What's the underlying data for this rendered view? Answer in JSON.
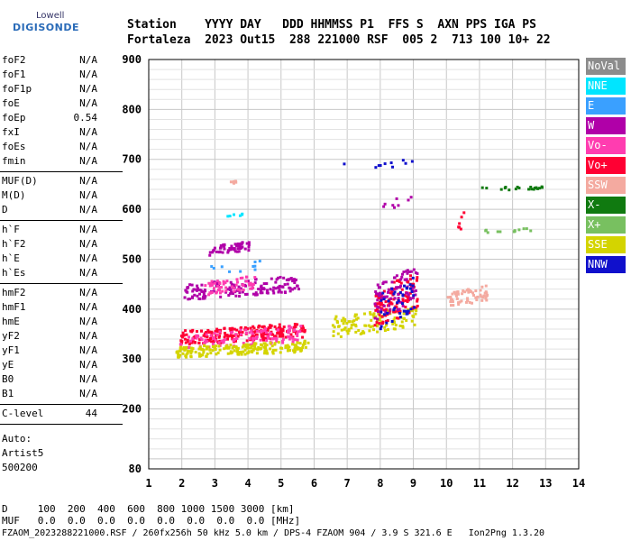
{
  "logo": {
    "line1": "Lowell",
    "line2": "DIGISONDE"
  },
  "header": {
    "line1": "Station    YYYY DAY   DDD HHMMSS P1  FFS S  AXN PPS IGA PS",
    "line2": "Fortaleza  2023 Out15  288 221000 RSF  005 2  713 100 10+ 22"
  },
  "params": {
    "group1": [
      {
        "name": "foF2",
        "value": "N/A"
      },
      {
        "name": "foF1",
        "value": "N/A"
      },
      {
        "name": "foF1p",
        "value": "N/A"
      },
      {
        "name": "foE",
        "value": "N/A"
      },
      {
        "name": "foEp",
        "value": "0.54"
      },
      {
        "name": "fxI",
        "value": "N/A"
      },
      {
        "name": "foEs",
        "value": "N/A"
      },
      {
        "name": "fmin",
        "value": "N/A"
      }
    ],
    "group2": [
      {
        "name": "MUF(D)",
        "value": "N/A"
      },
      {
        "name": "M(D)",
        "value": "N/A"
      },
      {
        "name": "D",
        "value": "N/A"
      }
    ],
    "group3": [
      {
        "name": "h`F",
        "value": "N/A"
      },
      {
        "name": "h`F2",
        "value": "N/A"
      },
      {
        "name": "h`E",
        "value": "N/A"
      },
      {
        "name": "h`Es",
        "value": "N/A"
      }
    ],
    "group4": [
      {
        "name": "hmF2",
        "value": "N/A"
      },
      {
        "name": "hmF1",
        "value": "N/A"
      },
      {
        "name": "hmE",
        "value": "N/A"
      },
      {
        "name": "yF2",
        "value": "N/A"
      },
      {
        "name": "yF1",
        "value": "N/A"
      },
      {
        "name": "yE",
        "value": "N/A"
      },
      {
        "name": "B0",
        "value": "N/A"
      },
      {
        "name": "B1",
        "value": "N/A"
      }
    ],
    "clevel": {
      "name": "C-level",
      "value": "44"
    },
    "auto": [
      "Auto:",
      "Artist5",
      "500200"
    ]
  },
  "legend": [
    {
      "label": "NoVal",
      "color": "#8c8c8c"
    },
    {
      "label": "NNE",
      "color": "#00e5ff"
    },
    {
      "label": "E",
      "color": "#3aa0ff"
    },
    {
      "label": "W",
      "color": "#b000a8"
    },
    {
      "label": "Vo-",
      "color": "#ff3db0"
    },
    {
      "label": "Vo+",
      "color": "#ff0033"
    },
    {
      "label": "SSW",
      "color": "#f4aaa0"
    },
    {
      "label": "X-",
      "color": "#107a10"
    },
    {
      "label": "X+",
      "color": "#78c060"
    },
    {
      "label": "SSE",
      "color": "#d4d400"
    },
    {
      "label": "NNW",
      "color": "#1010cc"
    }
  ],
  "footer": {
    "line1": "D     100  200  400  600  800 1000 1500 3000 [km]",
    "line2": "MUF   0.0  0.0  0.0  0.0  0.0  0.0  0.0  0.0 [MHz]",
    "line3": "FZAOM_2023288221000.RSF / 260fx256h 50 kHz 5.0 km / DPS-4 FZAOM 904 / 3.9 S 321.6 E   Ion2Png 1.3.20"
  },
  "chart_data": {
    "type": "scatter",
    "xlim": [
      1,
      14
    ],
    "ylim": [
      80,
      900
    ],
    "xticks": [
      1,
      2,
      3,
      4,
      5,
      6,
      7,
      8,
      9,
      10,
      11,
      12,
      13,
      14
    ],
    "yticks": [
      80,
      200,
      300,
      400,
      500,
      600,
      700,
      800,
      900
    ],
    "grid": true,
    "legend_placement": "right",
    "clusters": [
      {
        "series": "Vo+",
        "x": [
          1.9,
          5.7
        ],
        "y": [
          330,
          375
        ],
        "n": 220
      },
      {
        "series": "Vo-",
        "x": [
          1.9,
          5.6
        ],
        "y": [
          320,
          370
        ],
        "n": 120
      },
      {
        "series": "SSE",
        "x": [
          1.8,
          5.8
        ],
        "y": [
          305,
          340
        ],
        "n": 200
      },
      {
        "series": "W",
        "x": [
          2.0,
          5.5
        ],
        "y": [
          420,
          470
        ],
        "n": 150
      },
      {
        "series": "W",
        "x": [
          2.8,
          4.0
        ],
        "y": [
          510,
          540
        ],
        "n": 60
      },
      {
        "series": "Vo-",
        "x": [
          2.6,
          4.2
        ],
        "y": [
          430,
          470
        ],
        "n": 60
      },
      {
        "series": "SSE",
        "x": [
          6.5,
          9.1
        ],
        "y": [
          345,
          410
        ],
        "n": 120
      },
      {
        "series": "Vo+",
        "x": [
          7.8,
          9.1
        ],
        "y": [
          360,
          480
        ],
        "n": 110
      },
      {
        "series": "W",
        "x": [
          7.8,
          9.1
        ],
        "y": [
          380,
          490
        ],
        "n": 80
      },
      {
        "series": "NNW",
        "x": [
          7.9,
          9.0
        ],
        "y": [
          360,
          470
        ],
        "n": 40
      },
      {
        "series": "SSW",
        "x": [
          10.0,
          11.2
        ],
        "y": [
          405,
          450
        ],
        "n": 60
      },
      {
        "series": "SSW",
        "x": [
          3.3,
          3.6
        ],
        "y": [
          650,
          660
        ],
        "n": 6
      },
      {
        "series": "X-",
        "x": [
          11.0,
          12.9
        ],
        "y": [
          638,
          652
        ],
        "n": 20
      },
      {
        "series": "X+",
        "x": [
          11.0,
          12.6
        ],
        "y": [
          555,
          565
        ],
        "n": 12
      },
      {
        "series": "NNW",
        "x": [
          6.8,
          9.1
        ],
        "y": [
          680,
          705
        ],
        "n": 10
      },
      {
        "series": "W",
        "x": [
          8.0,
          9.0
        ],
        "y": [
          600,
          630
        ],
        "n": 8
      },
      {
        "series": "NNE",
        "x": [
          3.2,
          3.8
        ],
        "y": [
          585,
          595
        ],
        "n": 6
      },
      {
        "series": "E",
        "x": [
          2.8,
          4.4
        ],
        "y": [
          470,
          500
        ],
        "n": 10
      },
      {
        "series": "Vo+",
        "x": [
          10.3,
          10.5
        ],
        "y": [
          540,
          600
        ],
        "n": 6
      }
    ]
  }
}
